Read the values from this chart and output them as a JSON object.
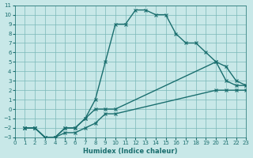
{
  "title": "",
  "xlabel": "Humidex (Indice chaleur)",
  "ylabel": "",
  "xlim": [
    0,
    23
  ],
  "ylim": [
    -3,
    11
  ],
  "xticks": [
    0,
    1,
    2,
    3,
    4,
    5,
    6,
    7,
    8,
    9,
    10,
    11,
    12,
    13,
    14,
    15,
    16,
    17,
    18,
    19,
    20,
    21,
    22,
    23
  ],
  "yticks": [
    -3,
    -2,
    -1,
    0,
    1,
    2,
    3,
    4,
    5,
    6,
    7,
    8,
    9,
    10,
    11
  ],
  "bg_color": "#c8e8e8",
  "grid_color": "#7ab8b8",
  "line_color": "#1a6e6e",
  "line1_x": [
    1,
    2,
    3,
    4,
    5,
    6,
    7,
    8,
    9,
    10,
    11,
    12,
    13,
    14,
    15,
    16,
    17,
    18,
    19,
    20,
    21,
    22,
    23
  ],
  "line1_y": [
    -2,
    -2,
    -3,
    -3,
    -2,
    -2,
    -1,
    1,
    5,
    9,
    9,
    10.5,
    10.5,
    10,
    10,
    8,
    7,
    7,
    6,
    5,
    3,
    2.5,
    2.5
  ],
  "line2_x": [
    1,
    2,
    3,
    4,
    5,
    6,
    7,
    8,
    9,
    10,
    20,
    21,
    22,
    23
  ],
  "line2_y": [
    -2,
    -2,
    -3,
    -3,
    -2,
    -2,
    -1,
    0,
    0,
    0,
    5,
    4.5,
    3,
    2.5
  ],
  "line3_x": [
    1,
    2,
    3,
    4,
    5,
    6,
    7,
    8,
    9,
    10,
    20,
    21,
    22,
    23
  ],
  "line3_y": [
    -2,
    -2,
    -3,
    -3,
    -2.5,
    -2.5,
    -2,
    -1.5,
    -0.5,
    -0.5,
    2,
    2,
    2,
    2
  ]
}
